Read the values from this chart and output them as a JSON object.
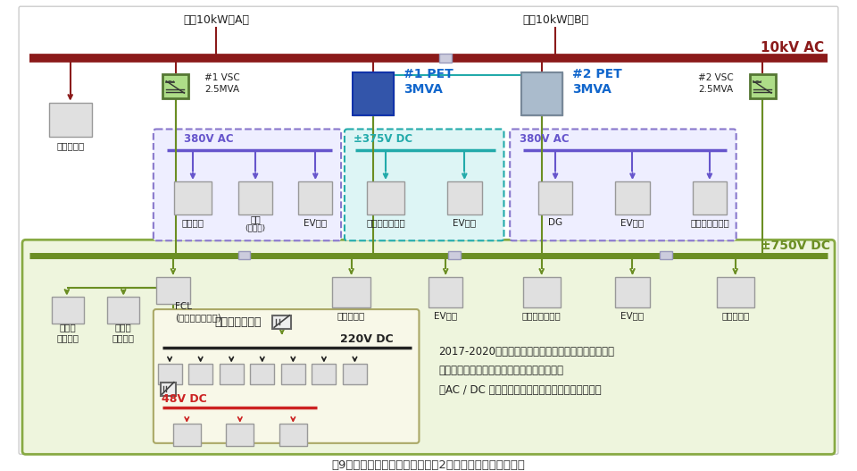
{
  "title": "図9　蘇州の再エネタウン（その2）：配電網のトポロジー",
  "colors": {
    "bg_outer": "#ffffff",
    "bg_inner": "#f8f8f8",
    "bus_10kv": "#8B1A1A",
    "bus_750dc": "#6B8E23",
    "ac380_color": "#6655cc",
    "dc375_color": "#22aaaa",
    "dc220_color": "#222222",
    "dc48_color": "#cc2222",
    "vsc_fill": "#aedd88",
    "vsc_edge": "#557733",
    "pet_text": "#1166cc",
    "green_region_fill": "#eef5dd",
    "green_region_edge": "#88aa44",
    "purple_box_fill": "#eeeeff",
    "purple_box_edge": "#8877cc",
    "teal_box_fill": "#ddf5f5",
    "teal_box_edge": "#22aaaa",
    "smart_fill": "#f8f8e8",
    "smart_edge": "#aaa866",
    "img_fill": "#e0e0e0",
    "img_edge": "#999999",
    "switch_fill": "#ccccdd",
    "switch_edge": "#9999bb",
    "line_dark": "#555555"
  },
  "labels": {
    "ac10kw_A": "交流10kW（A）",
    "ac10kw_B": "交流10kW（B）",
    "10kv_ac": "10kV AC",
    "vsc1": "#1 VSC\n2.5MVA",
    "vsc2": "#2 VSC\n2.5MVA",
    "pet1": "#1 PET\n3MVA",
    "pet2": "#2 PET\n3MVA",
    "380vac1": "380V AC",
    "380vac2": "380V AC",
    "375vdc": "±375V DC",
    "750vdc": "±750V DC",
    "220vdc": "220V DC",
    "48vdc": "48V DC",
    "solar": "太陽光発電",
    "wind": "風力発電",
    "load": "負荷\n(街灯等)",
    "ev": "EV充電",
    "battery_sys": "蓄電池システム",
    "battery_sys2": "蓄電池\nシステム",
    "datacenter": "データセンター",
    "datacenter2": "データ\nセンター",
    "dg": "DG",
    "fcl": "FCL\n(故障電流制限器)",
    "smarthouse": "スマートハウス",
    "note_line1": "2017-2020年の全国主要研究プロジェクトによる支援",
    "note_line2": "《パワーエレクトロニクストランスに基づく",
    "note_line3": "　AC / DC ハイブリッド再生可能エネルギー技術》"
  }
}
